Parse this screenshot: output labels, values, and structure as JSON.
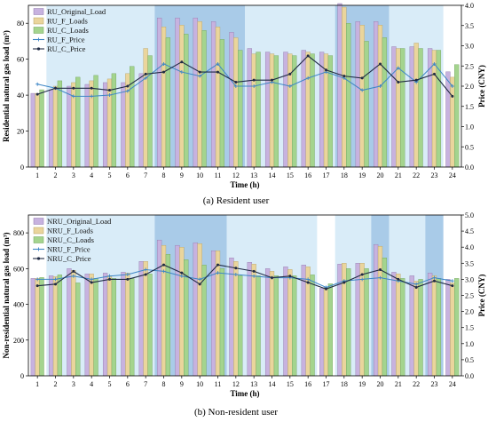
{
  "colors": {
    "original": "#c7b2df",
    "f_loads": "#ead59c",
    "c_loads": "#a4d48e",
    "f_price": "#3d86c6",
    "c_price": "#1f2a44",
    "band_light": "#d9ecf8",
    "band_dark": "#a9cbe8"
  },
  "chart_data": [
    {
      "type": "bar",
      "caption": "(a) Resident user",
      "xlabel": "Time (h)",
      "ylabel": "Residential natural gas load (m³)",
      "y2label": "Price (CNY)",
      "ylim": [
        0,
        90
      ],
      "y2lim": [
        0,
        4
      ],
      "yticks": [
        "0",
        "20",
        "40",
        "60",
        "80"
      ],
      "y2ticks": [
        "0.0",
        "0.5",
        "1.0",
        "1.5",
        "2.0",
        "2.5",
        "3.0",
        "3.5",
        "4.0"
      ],
      "categories": [
        "1",
        "2",
        "3",
        "4",
        "5",
        "6",
        "7",
        "8",
        "9",
        "10",
        "11",
        "12",
        "13",
        "14",
        "15",
        "16",
        "17",
        "18",
        "19",
        "20",
        "21",
        "22",
        "23",
        "24"
      ],
      "legend": [
        "RU_Original_Load",
        "RU_F_Loads",
        "RU_C_Loads",
        "RU_F_Price",
        "RU_C_Price"
      ],
      "bands": [
        {
          "start": 1,
          "end": 7,
          "shade": "light"
        },
        {
          "start": 7,
          "end": 12,
          "shade": "dark"
        },
        {
          "start": 12,
          "end": 17,
          "shade": "light"
        },
        {
          "start": 17,
          "end": 20,
          "shade": "dark"
        },
        {
          "start": 20,
          "end": 23,
          "shade": "light"
        }
      ],
      "bar_series": [
        {
          "name": "RU_Original_Load",
          "values": [
            41,
            43,
            45,
            46,
            47,
            47,
            52,
            83,
            83,
            83,
            81,
            75,
            66,
            64,
            64,
            65,
            64,
            91,
            81,
            81,
            67,
            67,
            66,
            53
          ]
        },
        {
          "name": "RU_F_Loads",
          "values": [
            41,
            45,
            47,
            48,
            49,
            52,
            66,
            78,
            79,
            81,
            78,
            72,
            63,
            63,
            63,
            64,
            63,
            89,
            79,
            79,
            66,
            69,
            65,
            50
          ]
        },
        {
          "name": "RU_C_Loads",
          "values": [
            43,
            48,
            50,
            51,
            52,
            56,
            62,
            72,
            74,
            76,
            71,
            65,
            64,
            62,
            62,
            63,
            62,
            80,
            70,
            72,
            66,
            66,
            65,
            57
          ]
        }
      ],
      "line_series": [
        {
          "name": "RU_F_Price",
          "values": [
            2.05,
            1.95,
            1.75,
            1.75,
            1.78,
            1.88,
            2.2,
            2.55,
            2.35,
            2.25,
            2.55,
            2.0,
            2.0,
            2.1,
            2.0,
            2.2,
            2.35,
            2.2,
            1.9,
            2.0,
            2.45,
            2.1,
            2.55,
            2.0
          ]
        },
        {
          "name": "RU_C_Price",
          "values": [
            1.8,
            1.95,
            1.95,
            1.95,
            1.9,
            2.0,
            2.3,
            2.35,
            2.6,
            2.35,
            2.35,
            2.1,
            2.15,
            2.15,
            2.3,
            2.75,
            2.4,
            2.25,
            2.2,
            2.55,
            2.1,
            2.15,
            2.3,
            1.75
          ]
        }
      ]
    },
    {
      "type": "bar",
      "caption": "(b) Non-resident user",
      "xlabel": "Time (h)",
      "ylabel": "Non-residential natural gas load (m³)",
      "y2label": "Price (CNY)",
      "ylim": [
        0,
        900
      ],
      "y2lim": [
        0,
        5
      ],
      "yticks": [
        "0",
        "200",
        "400",
        "600",
        "800"
      ],
      "y2ticks": [
        "0.0",
        "0.5",
        "1.0",
        "1.5",
        "2.0",
        "2.5",
        "3.0",
        "3.5",
        "4.0",
        "4.5",
        "5.0"
      ],
      "categories": [
        "1",
        "2",
        "3",
        "4",
        "5",
        "6",
        "7",
        "8",
        "9",
        "10",
        "11",
        "12",
        "13",
        "14",
        "15",
        "16",
        "17",
        "18",
        "19",
        "20",
        "21",
        "22",
        "23",
        "24"
      ],
      "legend": [
        "NRU_Original_Load",
        "NRU_F_Loads",
        "NRU_C_Loads",
        "NRU_F_Price",
        "NRU_C_Price"
      ],
      "bands": [
        {
          "start": 1,
          "end": 7,
          "shade": "light"
        },
        {
          "start": 7,
          "end": 11,
          "shade": "dark"
        },
        {
          "start": 11,
          "end": 16,
          "shade": "light"
        },
        {
          "start": 17,
          "end": 19,
          "shade": "light"
        },
        {
          "start": 19,
          "end": 20,
          "shade": "dark"
        },
        {
          "start": 20,
          "end": 22,
          "shade": "light"
        },
        {
          "start": 22,
          "end": 23,
          "shade": "dark"
        }
      ],
      "bar_series": [
        {
          "name": "NRU_Original_Load",
          "values": [
            545,
            560,
            600,
            570,
            575,
            580,
            640,
            760,
            730,
            745,
            700,
            660,
            635,
            600,
            610,
            620,
            490,
            625,
            630,
            735,
            580,
            560,
            575,
            540
          ]
        },
        {
          "name": "NRU_F_Loads",
          "values": [
            545,
            555,
            590,
            570,
            560,
            575,
            640,
            730,
            720,
            740,
            700,
            640,
            625,
            585,
            595,
            610,
            495,
            630,
            630,
            725,
            570,
            530,
            560,
            520
          ]
        },
        {
          "name": "NRU_C_Loads",
          "values": [
            550,
            565,
            520,
            545,
            545,
            545,
            570,
            680,
            650,
            620,
            600,
            560,
            560,
            560,
            560,
            565,
            515,
            600,
            600,
            660,
            545,
            540,
            545,
            545
          ]
        }
      ],
      "line_series": [
        {
          "name": "NRU_F_Price",
          "values": [
            3.0,
            3.0,
            3.1,
            3.0,
            3.1,
            3.15,
            3.3,
            3.25,
            3.1,
            3.0,
            3.2,
            3.15,
            3.1,
            3.05,
            3.05,
            3.0,
            2.75,
            2.95,
            3.0,
            3.05,
            2.95,
            2.85,
            3.05,
            2.95
          ]
        },
        {
          "name": "NRU_C_Price",
          "values": [
            2.8,
            2.85,
            3.25,
            2.9,
            3.0,
            3.0,
            3.15,
            3.45,
            3.2,
            2.85,
            3.45,
            3.35,
            3.25,
            3.05,
            3.1,
            2.9,
            2.7,
            2.9,
            3.15,
            3.3,
            3.0,
            2.75,
            2.95,
            2.8
          ]
        }
      ]
    }
  ]
}
